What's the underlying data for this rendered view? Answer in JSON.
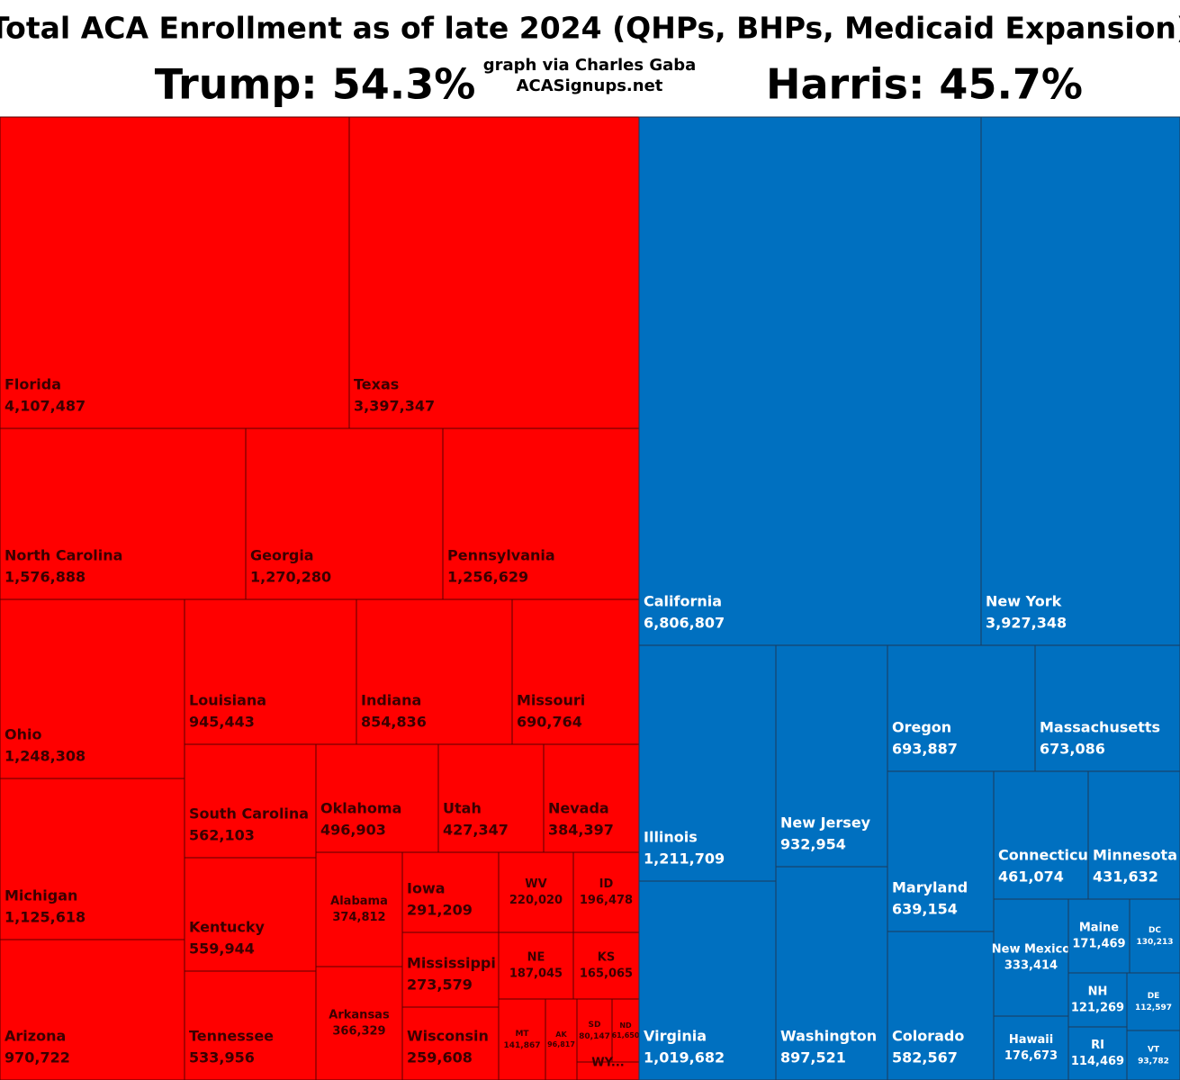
{
  "chart_data": {
    "type": "treemap",
    "title": "Total ACA Enrollment as of late 2024 (QHPs, BHPs, Medicaid Expansion)",
    "subtitle": [
      "graph via Charles Gaba",
      "ACASignups.net"
    ],
    "series": [
      {
        "name": "Trump: 54.3%",
        "color": "#ff0000",
        "categories": [
          "Florida",
          "Texas",
          "North Carolina",
          "Georgia",
          "Pennsylvania",
          "Ohio",
          "Michigan",
          "Arizona",
          "Louisiana",
          "Indiana",
          "Missouri",
          "South Carolina",
          "Oklahoma",
          "Utah",
          "Nevada",
          "Kentucky",
          "Tennessee",
          "Alabama",
          "Arkansas",
          "Iowa",
          "Mississippi",
          "Wisconsin",
          "WV",
          "ID",
          "NE",
          "KS",
          "MT",
          "AK",
          "SD",
          "ND",
          "WY..."
        ],
        "values": [
          4107487,
          3397347,
          1576888,
          1270280,
          1256629,
          1248308,
          1125618,
          970722,
          945443,
          854836,
          690764,
          562103,
          496903,
          427347,
          384397,
          559944,
          533956,
          374812,
          366329,
          291209,
          273579,
          259608,
          220020,
          196478,
          187045,
          165065,
          141867,
          96817,
          80147,
          61650,
          25000
        ],
        "value_labels": [
          "4,107,487",
          "3,397,347",
          "1,576,888",
          "1,270,280",
          "1,256,629",
          "1,248,308",
          "1,125,618",
          "970,722",
          "945,443",
          "854,836",
          "690,764",
          "562,103",
          "496,903",
          "427,347",
          "384,397",
          "559,944",
          "533,956",
          "374,812",
          "366,329",
          "291,209",
          "273,579",
          "259,608",
          "220,020",
          "196,478",
          "187,045",
          "165,065",
          "141,867",
          "96,817",
          "80,147",
          "61,650",
          null
        ]
      },
      {
        "name": "Harris: 45.7%",
        "color": "#0070c0",
        "categories": [
          "California",
          "New York",
          "Illinois",
          "Virginia",
          "New Jersey",
          "Washington",
          "Oregon",
          "Massachusetts",
          "Maryland",
          "Colorado",
          "Connecticut",
          "Minnesota",
          "New Mexico",
          "Hawaii",
          "Maine",
          "DC",
          "NH",
          "DE",
          "RI",
          "VT"
        ],
        "values": [
          6806807,
          3927348,
          1211709,
          1019682,
          932954,
          897521,
          693887,
          673086,
          639154,
          582567,
          461074,
          431632,
          333414,
          176673,
          171469,
          130213,
          121269,
          112597,
          114469,
          93782
        ],
        "value_labels": [
          "6,806,807",
          "3,927,348",
          "1,211,709",
          "1,019,682",
          "932,954",
          "897,521",
          "693,887",
          "673,086",
          "639,154",
          "582,567",
          "461,074",
          "431,632",
          "333,414",
          "176,673",
          "171,469",
          "130,213",
          "121,269",
          "112,597",
          "114,469",
          "93,782"
        ]
      }
    ]
  }
}
